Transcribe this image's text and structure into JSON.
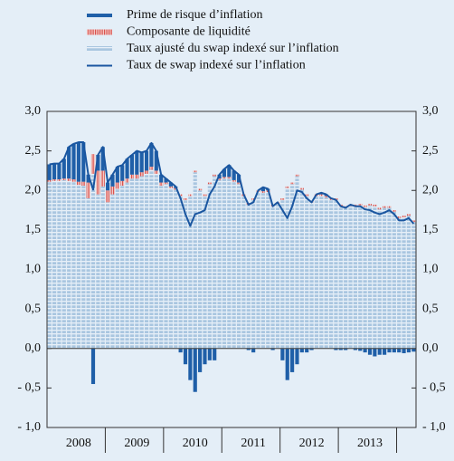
{
  "chart_data": {
    "type": "stacked_bar_line",
    "categories": [
      null,
      null,
      null,
      null,
      null,
      null,
      "2008",
      null,
      null,
      null,
      null,
      null,
      null,
      null,
      null,
      null,
      null,
      null,
      "2009",
      null,
      null,
      null,
      null,
      null,
      null,
      null,
      null,
      null,
      null,
      null,
      "2010",
      null,
      null,
      null,
      null,
      null,
      null,
      null,
      null,
      null,
      null,
      null,
      "2011",
      null,
      null,
      null,
      null,
      null,
      null,
      null,
      null,
      null,
      null,
      null,
      "2012",
      null,
      null,
      null,
      null,
      null,
      null,
      null,
      null,
      null,
      null,
      null,
      "2013",
      null,
      null,
      null,
      null,
      null,
      null,
      null,
      null,
      null
    ],
    "series": [
      {
        "name": "Prime de risque d’inflation",
        "color": "#1f5fa8",
        "kind": "bar",
        "values": [
          0.2,
          0.2,
          0.2,
          0.25,
          0.4,
          0.45,
          0.5,
          0.5,
          0.1,
          -0.45,
          0.2,
          0.3,
          0.1,
          0.15,
          0.2,
          0.2,
          0.25,
          0.25,
          0.3,
          0.25,
          0.25,
          0.3,
          0.25,
          0.1,
          0.05,
          0.05,
          0.02,
          -0.05,
          -0.2,
          -0.4,
          -0.55,
          -0.3,
          -0.2,
          -0.15,
          -0.15,
          0.05,
          0.1,
          0.15,
          0.12,
          0.1,
          0.0,
          -0.02,
          -0.05,
          0.0,
          0.05,
          0.02,
          -0.02,
          0.0,
          -0.15,
          -0.4,
          -0.3,
          -0.2,
          -0.05,
          -0.05,
          -0.02,
          0.0,
          0.02,
          0.02,
          0.0,
          -0.02,
          -0.02,
          -0.02,
          0.0,
          -0.02,
          -0.03,
          -0.05,
          -0.08,
          -0.1,
          -0.08,
          -0.08,
          -0.05,
          -0.05,
          -0.05,
          -0.06,
          -0.05,
          -0.04
        ]
      },
      {
        "name": "Composante de liquidité",
        "color": "#d9534f",
        "kind": "bar",
        "values": [
          0.02,
          0.02,
          0.02,
          0.02,
          0.03,
          0.03,
          0.04,
          0.05,
          0.2,
          0.25,
          0.3,
          0.2,
          0.15,
          0.1,
          0.08,
          0.06,
          0.05,
          0.05,
          0.05,
          0.05,
          0.04,
          0.04,
          0.04,
          0.04,
          0.02,
          0.02,
          0.02,
          0.02,
          0.02,
          0.02,
          0.02,
          0.02,
          0.02,
          0.02,
          0.02,
          0.02,
          0.02,
          0.02,
          0.02,
          0.02,
          0.02,
          0.02,
          0.02,
          0.02,
          0.02,
          0.02,
          0.02,
          0.02,
          0.02,
          0.02,
          0.02,
          0.02,
          0.02,
          0.02,
          0.02,
          0.02,
          0.02,
          0.02,
          0.02,
          0.02,
          0.02,
          0.02,
          0.02,
          0.02,
          0.02,
          0.02,
          0.02,
          0.02,
          0.02,
          0.02,
          0.02,
          0.02,
          0.02,
          0.02,
          0.02,
          0.02
        ]
      },
      {
        "name": "Taux ajusté du swap indexé sur l’inflation",
        "color": "#a9c6e0",
        "kind": "bar",
        "values": [
          2.11,
          2.12,
          2.12,
          2.13,
          2.12,
          2.11,
          2.07,
          2.06,
          1.9,
          2.21,
          1.95,
          2.05,
          1.85,
          1.95,
          2.02,
          2.06,
          2.1,
          2.15,
          2.15,
          2.18,
          2.21,
          2.26,
          2.21,
          2.06,
          2.08,
          2.03,
          2.01,
          1.93,
          1.88,
          1.93,
          2.23,
          2.0,
          1.93,
          2.08,
          2.18,
          2.13,
          2.15,
          2.15,
          2.11,
          2.08,
          1.93,
          1.82,
          1.88,
          1.98,
          1.97,
          1.98,
          1.8,
          1.83,
          1.88,
          2.03,
          2.08,
          2.18,
          2.01,
          1.93,
          1.85,
          1.93,
          1.93,
          1.91,
          1.88,
          1.88,
          1.8,
          1.78,
          1.8,
          1.8,
          1.81,
          1.79,
          1.81,
          1.8,
          1.76,
          1.78,
          1.78,
          1.73,
          1.65,
          1.66,
          1.68,
          1.6
        ]
      },
      {
        "name": "Taux de swap indexé sur l’inflation",
        "color": "#1a56a0",
        "kind": "line",
        "values": [
          2.33,
          2.34,
          2.34,
          2.4,
          2.55,
          2.59,
          2.61,
          2.61,
          2.2,
          2.01,
          2.45,
          2.55,
          2.1,
          2.2,
          2.3,
          2.32,
          2.4,
          2.45,
          2.5,
          2.48,
          2.5,
          2.6,
          2.5,
          2.2,
          2.15,
          2.1,
          2.05,
          1.9,
          1.7,
          1.55,
          1.7,
          1.72,
          1.75,
          1.95,
          2.05,
          2.2,
          2.27,
          2.32,
          2.25,
          2.2,
          1.95,
          1.82,
          1.85,
          2.0,
          2.04,
          2.02,
          1.8,
          1.85,
          1.75,
          1.65,
          1.8,
          2.0,
          1.98,
          1.9,
          1.85,
          1.95,
          1.97,
          1.95,
          1.9,
          1.88,
          1.8,
          1.78,
          1.82,
          1.8,
          1.8,
          1.76,
          1.75,
          1.72,
          1.7,
          1.72,
          1.75,
          1.7,
          1.62,
          1.62,
          1.65,
          1.58
        ]
      }
    ],
    "ylim": [
      -1,
      3
    ],
    "yticks": [
      {
        "value": -1,
        "label": "- 1,0"
      },
      {
        "value": -0.5,
        "label": "- 0,5"
      },
      {
        "value": 0,
        "label": "0,0"
      },
      {
        "value": 0.5,
        "label": "0,5"
      },
      {
        "value": 1,
        "label": "1,0"
      },
      {
        "value": 1.5,
        "label": "1,5"
      },
      {
        "value": 2,
        "label": "2,0"
      },
      {
        "value": 2.5,
        "label": "2,5"
      },
      {
        "value": 3,
        "label": "3,0"
      }
    ]
  }
}
